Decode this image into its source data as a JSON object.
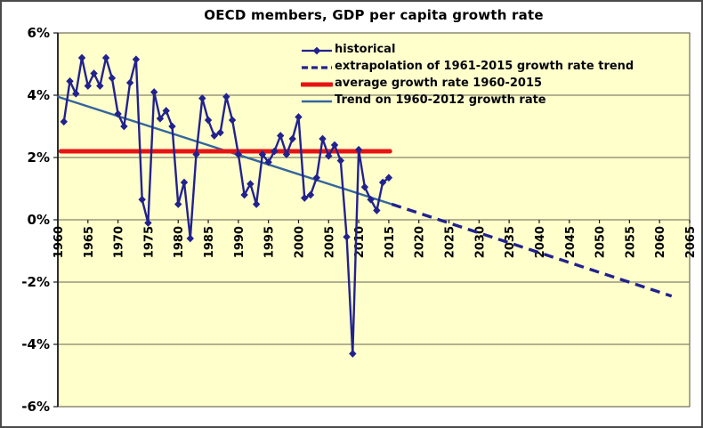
{
  "chart_data": {
    "type": "line",
    "title": "OECD members, GDP per capita growth rate",
    "xlabel": "",
    "ylabel": "",
    "xlim": [
      1960,
      2065
    ],
    "ylim": [
      -6,
      6
    ],
    "grid": "horizontal gridlines every 2%",
    "legend_position": "inside top-center, no box",
    "plot_background": "#FFFFCC",
    "y_ticks": [
      {
        "value": 6,
        "label": "6%"
      },
      {
        "value": 4,
        "label": "4%"
      },
      {
        "value": 2,
        "label": "2%"
      },
      {
        "value": 0,
        "label": "0%"
      },
      {
        "value": -2,
        "label": "-2%"
      },
      {
        "value": -4,
        "label": "-4%"
      },
      {
        "value": -6,
        "label": "-6%"
      }
    ],
    "x_ticks": [
      "1960",
      "1965",
      "1970",
      "1975",
      "1980",
      "1985",
      "1990",
      "1995",
      "2000",
      "2005",
      "2010",
      "2015",
      "2020",
      "2025",
      "2030",
      "2035",
      "2040",
      "2045",
      "2050",
      "2055",
      "2060",
      "2065"
    ],
    "series": [
      {
        "name": "historical",
        "type": "line+diamond-markers",
        "color": "#22228E",
        "years": [
          1961,
          1962,
          1963,
          1964,
          1965,
          1966,
          1967,
          1968,
          1969,
          1970,
          1971,
          1972,
          1973,
          1974,
          1975,
          1976,
          1977,
          1978,
          1979,
          1980,
          1981,
          1982,
          1983,
          1984,
          1985,
          1986,
          1987,
          1988,
          1989,
          1990,
          1991,
          1992,
          1993,
          1994,
          1995,
          1996,
          1997,
          1998,
          1999,
          2000,
          2001,
          2002,
          2003,
          2004,
          2005,
          2006,
          2007,
          2008,
          2009,
          2010,
          2011,
          2012,
          2013,
          2014,
          2015
        ],
        "values": [
          3.15,
          4.45,
          4.05,
          5.2,
          4.3,
          4.7,
          4.3,
          5.2,
          4.55,
          3.4,
          3.0,
          4.4,
          5.15,
          0.65,
          -0.1,
          4.1,
          3.25,
          3.5,
          3.0,
          0.5,
          1.2,
          -0.6,
          2.1,
          3.9,
          3.2,
          2.7,
          2.8,
          3.95,
          3.2,
          2.1,
          0.8,
          1.15,
          0.5,
          2.1,
          1.85,
          2.2,
          2.7,
          2.1,
          2.6,
          3.3,
          0.7,
          0.8,
          1.35,
          2.6,
          2.05,
          2.4,
          1.9,
          -0.55,
          -4.3,
          2.25,
          1.05,
          0.65,
          0.3,
          1.2,
          1.35
        ]
      },
      {
        "name": "extrapolation of 1961-2015 growth rate trend",
        "type": "dashed-line",
        "color": "#22228E",
        "segment": {
          "from": {
            "year": 2015.5,
            "value": 0.5
          },
          "to": {
            "year": 2062,
            "value": -2.45
          }
        }
      },
      {
        "name": "average growth rate 1960-2015",
        "type": "thick-line",
        "color": "#E61414",
        "segment": {
          "from": {
            "year": 1960.5,
            "value": 2.2
          },
          "to": {
            "year": 2015.2,
            "value": 2.2
          }
        }
      },
      {
        "name": "Trend on 1960-2012 growth rate",
        "type": "line",
        "color": "#33659C",
        "segment": {
          "from": {
            "year": 1960,
            "value": 3.95
          },
          "to": {
            "year": 2015.5,
            "value": 0.5
          }
        }
      }
    ]
  },
  "colors": {
    "plot_bg": "#FFFFCC",
    "gridline": "#84846A",
    "plot_border": "#6E6E58",
    "axis_line": "#1A1A1A",
    "navy_series": "#22228E",
    "red_average": "#E61414",
    "trend_blue": "#33659C",
    "text": "#000000",
    "frame_border": "#4A4A4A",
    "outer_bg": "#FFFFFF"
  }
}
